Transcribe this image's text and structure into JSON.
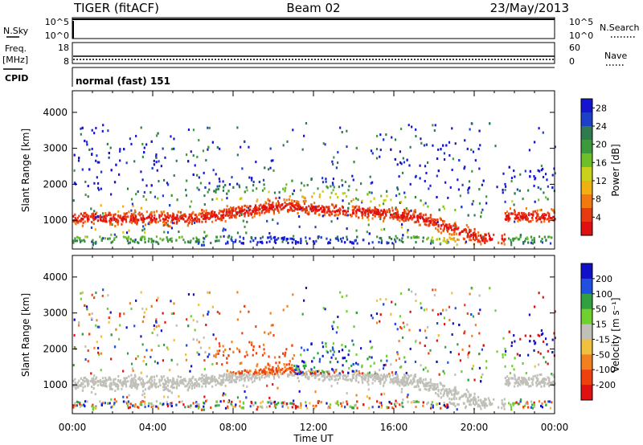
{
  "header": {
    "title_left": "TIGER (fitACF)",
    "title_center": "Beam 02",
    "title_right": "23/May/2013"
  },
  "status": {
    "left_labels": {
      "nsky": "N.Sky",
      "freq": "Freq.",
      "mhz": "[MHz]",
      "cpid": "CPID"
    },
    "right_labels": {
      "nsearch": "N.Search",
      "nave": "Nave"
    },
    "nsky_ticks": [
      "10^5",
      "10^0"
    ],
    "nsearch_ticks": [
      "10^5",
      "10^0"
    ],
    "freq_ticks": [
      "18",
      "8"
    ],
    "nave_ticks": [
      "60",
      "0"
    ],
    "cpid_text": "normal (fast) 151"
  },
  "chart_data": [
    {
      "type": "heatmap",
      "name_panel": "power",
      "ylabel": "Slant Range [km]",
      "yticks": [
        "4000",
        "3000",
        "2000",
        "1000"
      ],
      "ytick_values": [
        4000,
        3000,
        2000,
        1000
      ],
      "ylim": [
        200,
        4600
      ],
      "xlim_hours": [
        0,
        24
      ],
      "colorbar": {
        "label": "Power [dB]",
        "ticks": [
          "28",
          "24",
          "20",
          "16",
          "12",
          "8",
          "4"
        ],
        "tick_values": [
          28,
          24,
          20,
          16,
          12,
          8,
          4
        ],
        "range": [
          0,
          30
        ],
        "colors": [
          "#1515d0",
          "#1e3fc8",
          "#2f7a4e",
          "#3d9a3a",
          "#6fbf2a",
          "#c8d218",
          "#f0b010",
          "#f07a10",
          "#e83a10",
          "#e01010"
        ]
      }
    },
    {
      "type": "heatmap",
      "name_panel": "velocity",
      "ylabel": "Slant Range [km]",
      "yticks": [
        "4000",
        "3000",
        "2000",
        "1000"
      ],
      "ytick_values": [
        4000,
        3000,
        2000,
        1000
      ],
      "ylim": [
        200,
        4600
      ],
      "xlim_hours": [
        0,
        24
      ],
      "xticks": [
        "00:00",
        "04:00",
        "08:00",
        "12:00",
        "16:00",
        "20:00",
        "00:00"
      ],
      "xlabel": "Time UT",
      "colorbar": {
        "label": "Velocity [m s⁻¹]",
        "ticks": [
          "200",
          "100",
          "50",
          "15",
          "-15",
          "-50",
          "-100",
          "-200"
        ],
        "colors": [
          "#1010c8",
          "#2050e0",
          "#30a040",
          "#70d030",
          "#c0c0b8",
          "#f0c040",
          "#f08020",
          "#f04010",
          "#e01010"
        ]
      }
    }
  ]
}
